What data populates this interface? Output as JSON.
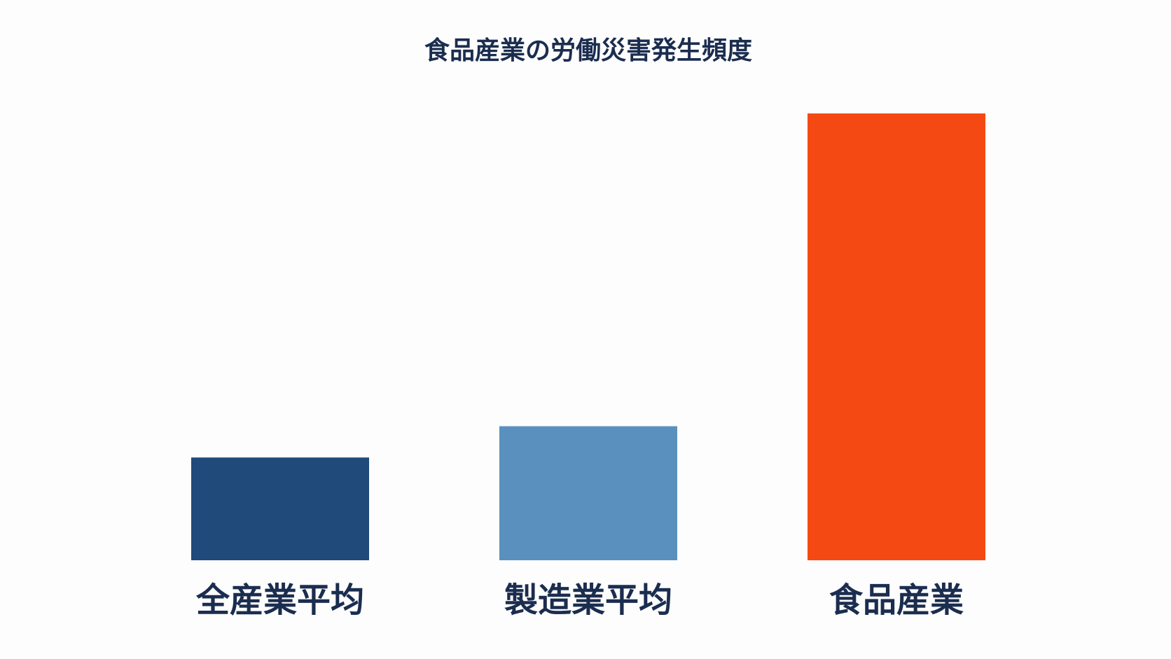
{
  "chart_data": {
    "type": "bar",
    "title": "食品産業の労働災害発生頻度",
    "categories": [
      "全産業平均",
      "製造業平均",
      "食品産業"
    ],
    "values": [
      2.3,
      3.0,
      10.0
    ],
    "colors": [
      "#1f4a7a",
      "#5a90be",
      "#f54914"
    ]
  }
}
